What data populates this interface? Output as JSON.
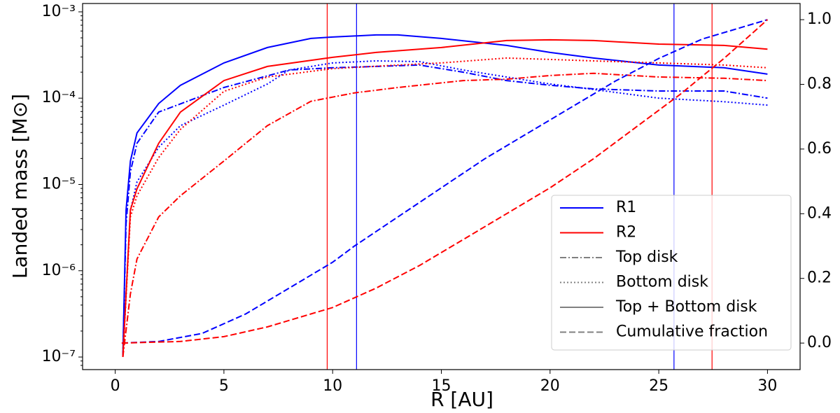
{
  "chart_data": {
    "type": "line",
    "xlabel": "R [AU]",
    "ylabel": "Landed mass [M⊙]",
    "xlim": [
      -1.5,
      31.5
    ],
    "xticks": [
      0,
      5,
      10,
      15,
      20,
      25,
      30
    ],
    "ylim": [
      7.15e-08,
      0.00125
    ],
    "ylog": true,
    "yticks": [
      {
        "value": 1e-07,
        "label": "10⁻⁷"
      },
      {
        "value": 1e-06,
        "label": "10⁻⁶"
      },
      {
        "value": 1e-05,
        "label": "10⁻⁵"
      },
      {
        "value": 0.0001,
        "label": "10⁻⁴"
      },
      {
        "value": 0.001,
        "label": "10⁻³"
      }
    ],
    "y2lim": [
      -0.082,
      1.05
    ],
    "y2ticks": [
      {
        "value": 0,
        "label": "0.0"
      },
      0.2,
      0.4,
      0.6,
      0.8,
      {
        "value": 1,
        "label": "1.0"
      }
    ],
    "vlines": [
      {
        "x": 9.75,
        "color": "#ff0000"
      },
      {
        "x": 11.1,
        "color": "#0000ff"
      },
      {
        "x": 25.7,
        "color": "#0000ff"
      },
      {
        "x": 27.45,
        "color": "#ff0000"
      }
    ],
    "series": [
      {
        "color": "#0000ff",
        "dash": "solid",
        "x": [
          0.35,
          0.5,
          0.7,
          1,
          2,
          3,
          5,
          7,
          9,
          10,
          12,
          13,
          15,
          18,
          20,
          22,
          25,
          28,
          30
        ],
        "values": [
          1e-07,
          5.07e-06,
          1.87e-05,
          3.95e-05,
          8.67e-05,
          0.000141,
          0.000256,
          0.000386,
          0.000492,
          0.000511,
          0.00054,
          0.00054,
          0.000492,
          0.000408,
          0.000339,
          0.000292,
          0.000242,
          0.000225,
          0.00019
        ]
      },
      {
        "color": "#0000ff",
        "dash": "dashdot",
        "x": [
          0.35,
          0.5,
          0.7,
          1,
          2,
          5,
          8,
          10,
          12,
          14,
          16,
          18,
          20,
          22,
          25,
          28,
          30
        ],
        "values": [
          1e-07,
          3.5e-06,
          1.4e-05,
          3e-05,
          6.9e-05,
          0.000133,
          0.000212,
          0.000225,
          0.000233,
          0.000242,
          0.0002,
          0.00016,
          0.000141,
          0.000128,
          0.000121,
          0.000121,
          0.0001
        ]
      },
      {
        "color": "#0000ff",
        "dash": "dotted",
        "x": [
          0.35,
          0.7,
          1,
          2,
          3,
          5,
          7,
          8,
          10,
          12,
          14,
          16,
          18,
          20,
          22,
          25,
          28,
          30
        ],
        "values": [
          1e-07,
          5e-06,
          1.07e-05,
          2.7e-05,
          4.8e-05,
          8.3e-05,
          0.000146,
          0.000212,
          0.000256,
          0.00027,
          0.000265,
          0.000212,
          0.000176,
          0.000146,
          0.000126,
          0.0001,
          9.1e-05,
          8.3e-05
        ]
      },
      {
        "color": "#ff0000",
        "dash": "solid",
        "x": [
          0.35,
          0.7,
          1,
          2,
          3,
          5,
          7,
          10,
          12,
          15,
          18,
          20,
          22,
          25,
          28,
          30
        ],
        "values": [
          1e-07,
          5.07e-06,
          8.9e-06,
          3e-05,
          6.9e-05,
          0.00016,
          0.000233,
          0.000297,
          0.000339,
          0.000386,
          0.000465,
          0.000474,
          0.000465,
          0.000423,
          0.000408,
          0.00037
        ]
      },
      {
        "color": "#ff0000",
        "dash": "dotted",
        "x": [
          0.35,
          0.7,
          1,
          2,
          3,
          5,
          7,
          10,
          13,
          15,
          18,
          20,
          22,
          25,
          28,
          30
        ],
        "values": [
          1e-07,
          4.2e-06,
          7.4e-06,
          2.05e-05,
          4.35e-05,
          0.00012,
          0.000176,
          0.00022,
          0.000242,
          0.000256,
          0.000292,
          0.000281,
          0.00027,
          0.000256,
          0.000242,
          0.000225
        ]
      },
      {
        "color": "#ff0000",
        "dash": "dashdot",
        "x": [
          0.35,
          0.7,
          1,
          2,
          3,
          5,
          7,
          9,
          11,
          13,
          16,
          18,
          20,
          22,
          25,
          28,
          30
        ],
        "values": [
          1e-07,
          5.4e-07,
          1.37e-06,
          4.2e-06,
          7.4e-06,
          1.87e-05,
          4.8e-05,
          9.2e-05,
          0.000115,
          0.000133,
          0.00016,
          0.000166,
          0.000183,
          0.000194,
          0.000176,
          0.00017,
          0.00016
        ]
      },
      {
        "color": "#0000ff",
        "dash": "dashed",
        "axis": "y2",
        "x": [
          0.3,
          2,
          4,
          6,
          8,
          10,
          11,
          13,
          15,
          17,
          19,
          21,
          23,
          25,
          27,
          30
        ],
        "values": [
          0,
          0.005,
          0.03,
          0.09,
          0.17,
          0.25,
          0.3,
          0.39,
          0.48,
          0.57,
          0.65,
          0.73,
          0.81,
          0.88,
          0.94,
          1.0
        ]
      },
      {
        "color": "#ff0000",
        "dash": "dashed",
        "axis": "y2",
        "x": [
          0.3,
          3,
          5,
          7,
          9,
          10,
          12,
          14,
          16,
          18,
          20,
          22,
          24,
          26,
          28,
          30
        ],
        "values": [
          0,
          0.005,
          0.02,
          0.05,
          0.09,
          0.11,
          0.17,
          0.24,
          0.32,
          0.4,
          0.48,
          0.57,
          0.67,
          0.77,
          0.88,
          1.0
        ]
      }
    ],
    "legend_loc": "lower right",
    "legend": [
      {
        "label": "R1",
        "color": "#0000ff",
        "dash": "solid"
      },
      {
        "label": "R2",
        "color": "#ff0000",
        "dash": "solid"
      },
      {
        "label": "Top disk",
        "color": "#808080",
        "dash": "dashdot"
      },
      {
        "label": "Bottom disk",
        "color": "#808080",
        "dash": "dotted"
      },
      {
        "label": "Top + Bottom disk",
        "color": "#808080",
        "dash": "solid"
      },
      {
        "label": "Cumulative fraction",
        "color": "#808080",
        "dash": "dashed"
      }
    ]
  }
}
